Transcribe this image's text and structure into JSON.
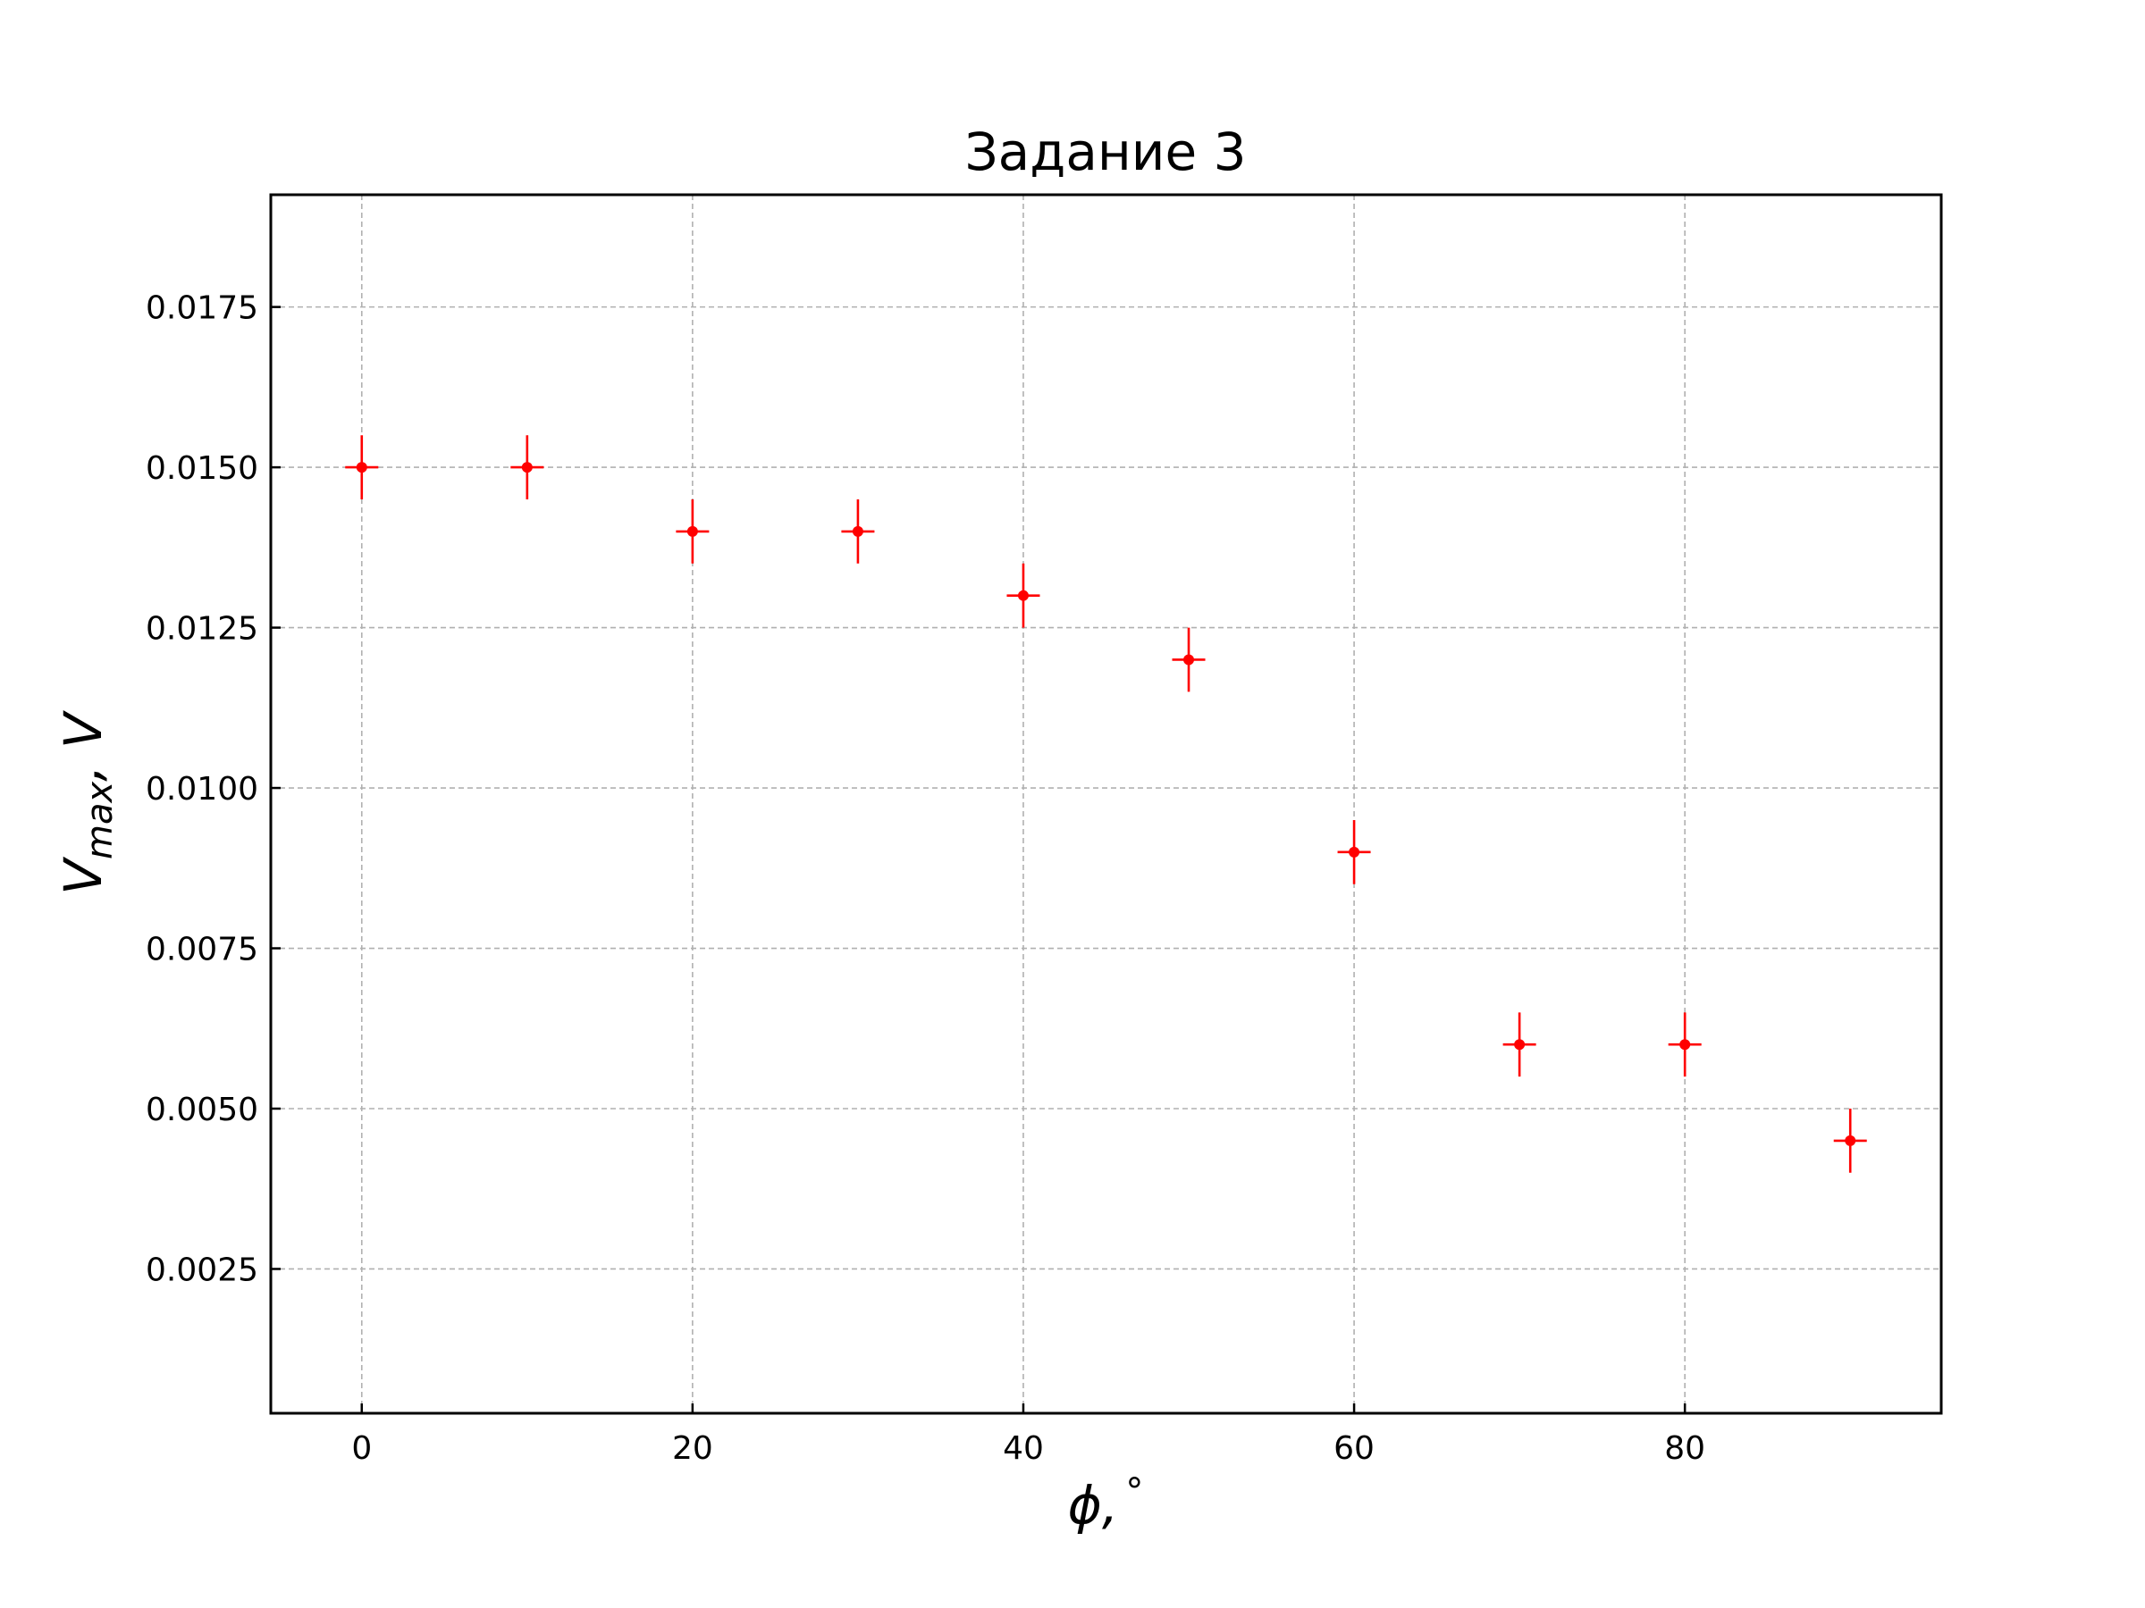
{
  "chart_data": {
    "type": "scatter",
    "title": "Задание 3",
    "xlabel": "ϕ, °",
    "ylabel": "Vmax, V",
    "x_ticks": [
      "0",
      "20",
      "40",
      "60",
      "80"
    ],
    "y_ticks": [
      "0.0025",
      "0.0050",
      "0.0075",
      "0.0100",
      "0.0125",
      "0.0150",
      "0.0175"
    ],
    "xlim": [
      -5.5,
      95.5
    ],
    "ylim": [
      0.00025,
      0.01925
    ],
    "grid": true,
    "series_color": "#ff0000",
    "series": [
      {
        "x": [
          0,
          10,
          20,
          30,
          40,
          50,
          60,
          70,
          80,
          90
        ],
        "y": [
          0.015,
          0.015,
          0.014,
          0.014,
          0.013,
          0.012,
          0.009,
          0.006,
          0.006,
          0.0045
        ],
        "xerr": 1,
        "yerr": 0.0005
      }
    ]
  }
}
